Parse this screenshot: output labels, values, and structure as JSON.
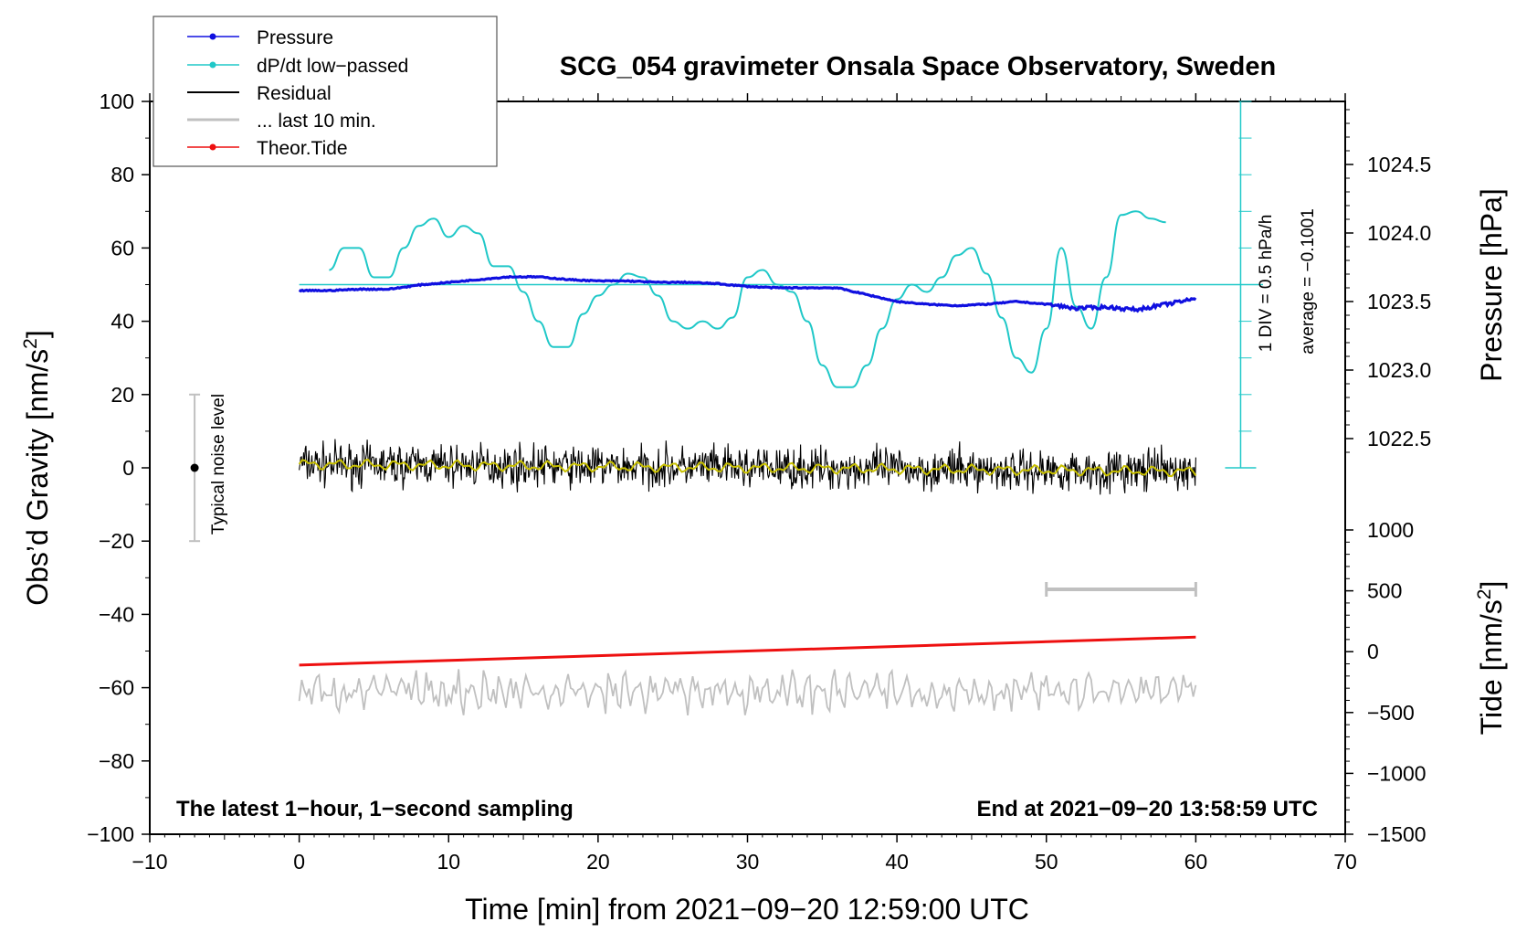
{
  "chart_data": {
    "type": "line",
    "title": "SCG_054 gravimeter Onsala Space Observatory, Sweden",
    "xlabel": "Time [min] from 2021−09−20 12:59:00 UTC",
    "ylabel_left": "Obs’d Gravity [nm/s",
    "ylabel_left_sup": "2",
    "ylabel_left_end": "]",
    "ylabel_right_pressure": "Pressure [hPa]",
    "ylabel_right_tide": "Tide [nm/s",
    "ylabel_right_tide_sup": "2",
    "ylabel_right_tide_end": "]",
    "xlim": [
      -10,
      70
    ],
    "ylim_left": [
      -100,
      100
    ],
    "x_ticks": [
      "−10",
      "0",
      "10",
      "20",
      "30",
      "40",
      "50",
      "60",
      "70"
    ],
    "x_tick_values": [
      -10,
      0,
      10,
      20,
      30,
      40,
      50,
      60,
      70
    ],
    "y_ticks": [
      "100",
      "80",
      "60",
      "40",
      "20",
      "0",
      "−20",
      "−40",
      "−60",
      "−80",
      "−100"
    ],
    "y_tick_values": [
      100,
      80,
      60,
      40,
      20,
      0,
      -20,
      -40,
      -60,
      -80,
      -100
    ],
    "pressure_axis": {
      "ticks": [
        "1024.5",
        "1024.0",
        "1023.5",
        "1023.0",
        "1022.5"
      ],
      "tick_values": [
        1024.5,
        1024.0,
        1023.5,
        1023.0,
        1022.5
      ],
      "range_hpa": [
        1022.0,
        1025.0
      ]
    },
    "tide_axis": {
      "ticks": [
        "1000",
        "500",
        "0",
        "−500",
        "−1000",
        "−1500"
      ],
      "tick_values": [
        1000,
        500,
        0,
        -500,
        -1000,
        -1500
      ],
      "range": [
        -1500,
        1000
      ]
    },
    "legend": {
      "position": "top-left",
      "entries": [
        {
          "label": "Pressure",
          "color": "#1010e0",
          "marker": true
        },
        {
          "label": "dP/dt low−passed",
          "color": "#20c8c8",
          "marker": true
        },
        {
          "label": "Residual",
          "color": "#000000",
          "marker": false
        },
        {
          "label": "... last 10 min.",
          "color": "#c0c0c0",
          "marker": false
        },
        {
          "label": "Theor.Tide",
          "color": "#ee1010",
          "marker": true
        }
      ]
    },
    "noise_bar": {
      "label": "Typical noise level",
      "x": -7,
      "center": 0,
      "half_range": 20
    },
    "dpdt_scale": {
      "div_label": "1 DIV = 0.5 hPa/h",
      "average_label": "average = −0.1001",
      "zero_level_gravity": 50
    },
    "last10_bar": {
      "x_start": 50,
      "x_end": 60
    },
    "notes": {
      "left": "The latest 1−hour, 1−second sampling",
      "right": "End at 2021−09−20 13:58:59 UTC"
    },
    "series": [
      {
        "name": "Pressure",
        "unit": "hPa",
        "color": "#1010e0",
        "x": [
          0,
          2,
          4,
          6,
          8,
          10,
          12,
          14,
          16,
          18,
          20,
          22,
          24,
          26,
          28,
          30,
          32,
          34,
          36,
          38,
          40,
          42,
          44,
          46,
          48,
          50,
          52,
          54,
          56,
          58,
          60
        ],
        "y": [
          1023.58,
          1023.58,
          1023.59,
          1023.59,
          1023.62,
          1023.64,
          1023.66,
          1023.68,
          1023.68,
          1023.66,
          1023.65,
          1023.65,
          1023.64,
          1023.64,
          1023.63,
          1023.61,
          1023.6,
          1023.6,
          1023.6,
          1023.55,
          1023.5,
          1023.48,
          1023.47,
          1023.48,
          1023.5,
          1023.48,
          1023.45,
          1023.46,
          1023.44,
          1023.48,
          1023.52
        ]
      },
      {
        "name": "dP/dt low−passed",
        "unit": "gravity-axis units (zero at 50)",
        "color": "#20c8c8",
        "x": [
          2,
          3,
          4,
          5,
          6,
          7,
          8,
          9,
          10,
          11,
          12,
          13,
          14,
          15,
          16,
          17,
          18,
          19,
          20,
          21,
          22,
          23,
          24,
          25,
          26,
          27,
          28,
          29,
          30,
          31,
          32,
          33,
          34,
          35,
          36,
          37,
          38,
          39,
          40,
          41,
          42,
          43,
          44,
          45,
          46,
          47,
          48,
          49,
          50,
          51,
          52,
          53,
          54,
          55,
          56,
          57,
          58
        ],
        "y": [
          54,
          60,
          60,
          52,
          52,
          60,
          66,
          68,
          63,
          66,
          64,
          55,
          55,
          48,
          40,
          33,
          33,
          42,
          47,
          50,
          53,
          52,
          47,
          40,
          38,
          40,
          38,
          41,
          52,
          54,
          50,
          48,
          40,
          28,
          22,
          22,
          28,
          38,
          46,
          50,
          48,
          52,
          58,
          60,
          53,
          41,
          30,
          26,
          38,
          60,
          44,
          38,
          52,
          69,
          70,
          68,
          67
        ]
      },
      {
        "name": "Residual",
        "unit": "nm/s2",
        "color": "#000000",
        "noise_amplitude": 7,
        "baseline": [
          1,
          -1
        ]
      },
      {
        "name": "Smoothed residual",
        "unit": "nm/s2",
        "color": "#c8c000",
        "x": [
          0,
          60
        ],
        "y": [
          1,
          -1
        ]
      },
      {
        "name": "... last 10 min.",
        "unit": "nm/s2 (offset −60)",
        "color": "#c0c0c0",
        "baseline": -61,
        "noise_amplitude": 5
      },
      {
        "name": "Theor.Tide",
        "unit": "nm/s2",
        "color": "#ee1010",
        "x": [
          0,
          60
        ],
        "y": [
          -110,
          120
        ]
      }
    ]
  }
}
